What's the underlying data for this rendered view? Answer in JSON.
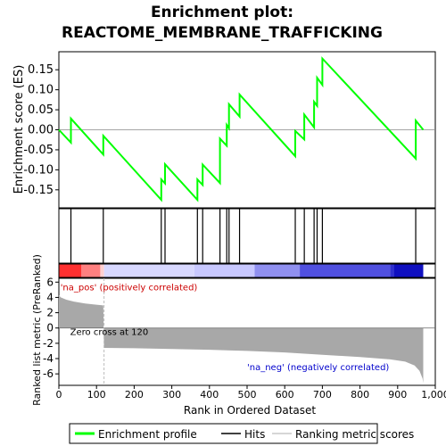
{
  "chart_data": {
    "type": "line",
    "title_line1": "Enrichment plot:",
    "title_line2": "REACTOME_MEMBRANE_TRAFFICKING",
    "es_panel": {
      "ylabel": "Enrichment score (ES)",
      "ylim": [
        -0.195,
        0.195
      ],
      "yticks": [
        -0.15,
        -0.1,
        -0.05,
        0.0,
        0.05,
        0.1,
        0.15
      ],
      "ytick_labels": [
        "-0.15",
        "-0.10",
        "-0.05",
        "0.00",
        "0.05",
        "0.10",
        "0.15"
      ],
      "line_color": "#00ff00",
      "points": [
        [
          0,
          0.0
        ],
        [
          32,
          -0.032
        ],
        [
          32,
          0.028
        ],
        [
          118,
          -0.062
        ],
        [
          118,
          -0.015
        ],
        [
          272,
          -0.175
        ],
        [
          272,
          -0.124
        ],
        [
          282,
          -0.134
        ],
        [
          282,
          -0.086
        ],
        [
          368,
          -0.175
        ],
        [
          368,
          -0.124
        ],
        [
          382,
          -0.138
        ],
        [
          382,
          -0.087
        ],
        [
          428,
          -0.133
        ],
        [
          428,
          -0.022
        ],
        [
          446,
          -0.04
        ],
        [
          446,
          0.012
        ],
        [
          452,
          0.004
        ],
        [
          452,
          0.064
        ],
        [
          480,
          0.033
        ],
        [
          480,
          0.088
        ],
        [
          628,
          -0.066
        ],
        [
          628,
          -0.003
        ],
        [
          652,
          -0.024
        ],
        [
          652,
          0.038
        ],
        [
          678,
          0.006
        ],
        [
          678,
          0.07
        ],
        [
          686,
          0.06
        ],
        [
          686,
          0.13
        ],
        [
          700,
          0.112
        ],
        [
          700,
          0.178
        ],
        [
          948,
          -0.072
        ],
        [
          948,
          0.023
        ],
        [
          968,
          0.0
        ]
      ]
    },
    "hits": {
      "color": "#000000",
      "ranks": [
        32,
        118,
        272,
        282,
        368,
        382,
        428,
        446,
        452,
        480,
        628,
        652,
        678,
        686,
        700,
        948
      ]
    },
    "heatmap_bar": {
      "stops": [
        {
          "rank": 0,
          "color": "#ff3030"
        },
        {
          "rank": 60,
          "color": "#ff8080"
        },
        {
          "rank": 110,
          "color": "#ffd0d0"
        },
        {
          "rank": 120,
          "color": "#d8d8ff"
        },
        {
          "rank": 360,
          "color": "#c8c8ff"
        },
        {
          "rank": 520,
          "color": "#9090f0"
        },
        {
          "rank": 640,
          "color": "#5050e0"
        },
        {
          "rank": 880,
          "color": "#3030d0"
        },
        {
          "rank": 890,
          "color": "#1010c0"
        },
        {
          "rank": 968,
          "color": "#0000b0"
        }
      ]
    },
    "metric_panel": {
      "ylabel": "Ranked list metric (PreRanked)",
      "ylim": [
        -7.5,
        6.5
      ],
      "yticks": [
        -6,
        -4,
        -2,
        0,
        2,
        4,
        6
      ],
      "ytick_labels": [
        "-6",
        "-4",
        "-2",
        "0",
        "2",
        "4",
        "6"
      ],
      "fill_color": "#a8a8a8",
      "curve": [
        [
          0,
          4.3
        ],
        [
          5,
          4.0
        ],
        [
          20,
          3.7
        ],
        [
          40,
          3.45
        ],
        [
          70,
          3.2
        ],
        [
          100,
          3.05
        ],
        [
          118,
          2.95
        ],
        [
          120,
          -2.6
        ],
        [
          200,
          -2.65
        ],
        [
          300,
          -2.75
        ],
        [
          400,
          -2.85
        ],
        [
          500,
          -3.0
        ],
        [
          600,
          -3.2
        ],
        [
          700,
          -3.5
        ],
        [
          800,
          -3.8
        ],
        [
          880,
          -4.1
        ],
        [
          920,
          -4.4
        ],
        [
          945,
          -4.9
        ],
        [
          958,
          -5.6
        ],
        [
          966,
          -6.6
        ],
        [
          968,
          -7.2
        ]
      ],
      "zero_cross_rank": 120,
      "zero_cross_label": "Zero cross at 120",
      "pos_label": "'na_pos' (positively correlated)",
      "neg_label": "'na_neg' (negatively correlated)",
      "pos_color": "#cc0000",
      "neg_color": "#0000cc"
    },
    "x_axis": {
      "xlabel": "Rank in Ordered Dataset",
      "xlim": [
        0,
        1000
      ],
      "xticks": [
        0,
        100,
        200,
        300,
        400,
        500,
        600,
        700,
        800,
        900,
        1000
      ],
      "xtick_labels": [
        "0",
        "100",
        "200",
        "300",
        "400",
        "500",
        "600",
        "700",
        "800",
        "900",
        "1,000"
      ]
    },
    "legend": {
      "placement": "bottom",
      "items": [
        {
          "label": "Enrichment profile",
          "color": "#00ff00"
        },
        {
          "label": "Hits",
          "color": "#000000"
        },
        {
          "label": "Ranking metric scores",
          "color": "#c8c8c8"
        }
      ]
    }
  }
}
